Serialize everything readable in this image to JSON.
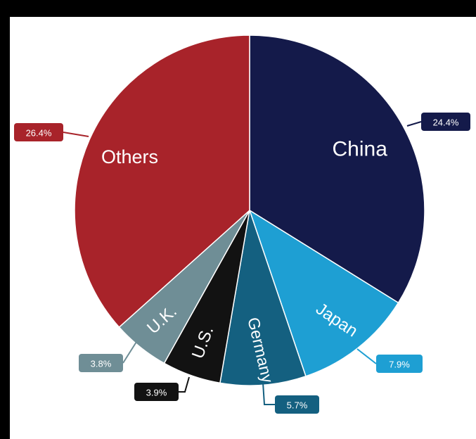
{
  "chart_data": {
    "type": "pie",
    "title": "",
    "slices": [
      {
        "label": "China",
        "value_label": "24.4%",
        "value": 24.4,
        "color": "#141a4a",
        "label_text_color": "#ffffff"
      },
      {
        "label": "Japan",
        "value_label": "7.9%",
        "value": 7.9,
        "color": "#1e9fd3",
        "label_text_color": "#ffffff"
      },
      {
        "label": "Germany",
        "value_label": "5.7%",
        "value": 5.7,
        "color": "#146080",
        "label_text_color": "#ffffff"
      },
      {
        "label": "U.S.",
        "value_label": "3.9%",
        "value": 3.9,
        "color": "#121212",
        "label_text_color": "#ffffff"
      },
      {
        "label": "U.K.",
        "value_label": "3.8%",
        "value": 3.8,
        "color": "#6f8e96",
        "label_text_color": "#ffffff"
      },
      {
        "label": "Others",
        "value_label": "26.4%",
        "value": 26.4,
        "color": "#a8232a",
        "label_text_color": "#ffffff"
      }
    ]
  }
}
